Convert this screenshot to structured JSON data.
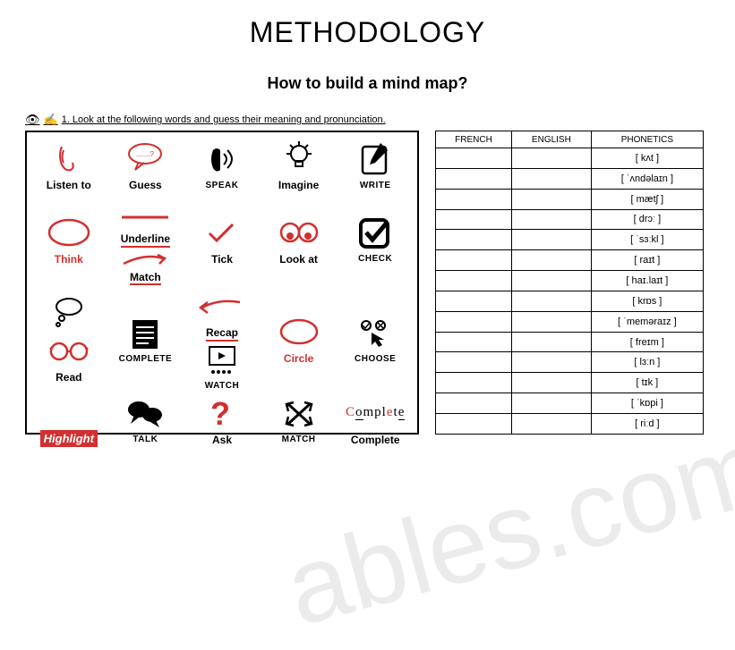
{
  "title": "METHODOLOGY",
  "subtitle": "How to build a mind map?",
  "instruction": "1. Look at the following words and guess their meaning and pronunciation.",
  "watermark": "ables.com",
  "grid": [
    {
      "label": "Listen to",
      "cls": "lbl",
      "icon": "ear"
    },
    {
      "label": "Guess",
      "cls": "lbl",
      "icon": "speech"
    },
    {
      "label": "SPEAK",
      "cls": "lbl-sm",
      "icon": "speak"
    },
    {
      "label": "Imagine",
      "cls": "lbl",
      "icon": "bulb"
    },
    {
      "label": "WRITE",
      "cls": "lbl-sm",
      "icon": "write"
    },
    {
      "label": "Think",
      "cls": "lbl red",
      "icon": "think"
    },
    {
      "label": "Underline",
      "cls": "lbl",
      "icon": "underline",
      "under": true
    },
    {
      "label": "Tick",
      "cls": "lbl",
      "icon": "tick"
    },
    {
      "label": "",
      "cls": "lbl",
      "icon": "blank"
    },
    {
      "label": "",
      "cls": "lbl",
      "icon": "blank"
    },
    {
      "label": "",
      "cls": "lbl",
      "icon": "thinkbubble"
    },
    {
      "label": "COMPLETE",
      "cls": "lbl-sm",
      "icon": "complete"
    },
    {
      "label": "WATCH",
      "cls": "lbl-sm",
      "icon": "watch"
    },
    {
      "label": "Look at",
      "cls": "lbl",
      "icon": "eyes"
    },
    {
      "label": "CHECK",
      "cls": "lbl-sm",
      "icon": "check"
    },
    {
      "label": "Read",
      "cls": "lbl",
      "icon": "glasses"
    },
    {
      "label": "Match",
      "cls": "lbl",
      "icon": "arrow",
      "under": true
    },
    {
      "label": "Recap",
      "cls": "lbl",
      "icon": "recap",
      "under": true
    },
    {
      "label": "Circle",
      "cls": "lbl red",
      "icon": "circle"
    },
    {
      "label": "",
      "cls": "lbl",
      "icon": "blank"
    },
    {
      "label": "Highlight",
      "cls": "hl",
      "icon": "blank"
    },
    {
      "label": "TALK",
      "cls": "lbl-sm",
      "icon": "talk"
    },
    {
      "label": "Ask",
      "cls": "lbl",
      "icon": "ask"
    },
    {
      "label": "MATCH",
      "cls": "lbl-sm",
      "icon": "match"
    },
    {
      "label": "Complete",
      "cls": "lbl",
      "icon": "complete2"
    },
    {
      "label": "CHOOSE",
      "cls": "lbl-sm",
      "icon": "choose"
    }
  ],
  "table": {
    "headers": [
      "FRENCH",
      "ENGLISH",
      "PHONETICS"
    ],
    "rows": [
      [
        "",
        "",
        "[ kʌt ]"
      ],
      [
        "",
        "",
        "[ ˈʌndəlaɪn ]"
      ],
      [
        "",
        "",
        "[ mætʃ ]"
      ],
      [
        "",
        "",
        "[ drɔː ]"
      ],
      [
        "",
        "",
        "[ ˈsɜːkl ]"
      ],
      [
        "",
        "",
        "[ raɪt ]"
      ],
      [
        "",
        "",
        "[ haɪ.laɪt ]"
      ],
      [
        "",
        "",
        "[ krɒs ]"
      ],
      [
        "",
        "",
        "[ ˈmeməraɪz ]"
      ],
      [
        "",
        "",
        "[ freɪm ]"
      ],
      [
        "",
        "",
        "[ lɜːn ]"
      ],
      [
        "",
        "",
        "[ tɪk ]"
      ],
      [
        "",
        "",
        "[ ˈkɒpi ]"
      ],
      [
        "",
        "",
        "[ riːd ]"
      ]
    ]
  },
  "colors": {
    "red": "#d32f2f",
    "black": "#000000"
  }
}
